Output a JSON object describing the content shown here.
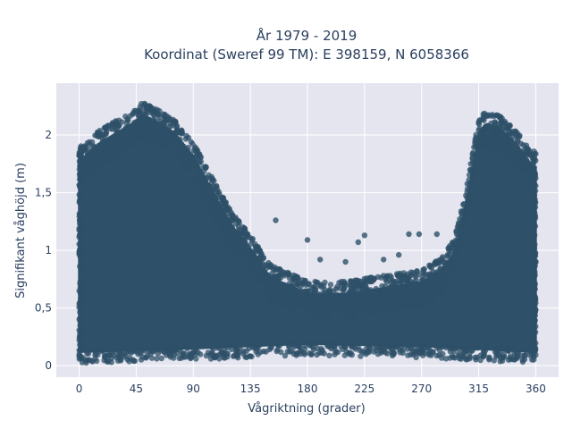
{
  "chart_data": {
    "type": "scatter",
    "title_line1": "År 1979 - 2019",
    "title_line2": "Koordinat (Sweref 99 TM): E 398159, N 6058366",
    "xlabel": "Vågriktning (grader)",
    "ylabel": "Signifikant våghöjd (m)",
    "xlim": [
      -18,
      378
    ],
    "ylim": [
      -0.1,
      2.45
    ],
    "xticks": [
      0,
      45,
      90,
      135,
      180,
      225,
      270,
      315,
      360
    ],
    "xtick_labels": [
      "0",
      "45",
      "90",
      "135",
      "180",
      "225",
      "270",
      "315",
      "360"
    ],
    "yticks": [
      0,
      0.5,
      1,
      1.5,
      2
    ],
    "ytick_labels": [
      "0",
      "0,5",
      "1",
      "1,5",
      "2"
    ],
    "grid": true,
    "marker_color": "#2e5068",
    "plot_background": "#e5e5f0",
    "upper_envelope": {
      "x": [
        0,
        15,
        30,
        45,
        50,
        60,
        75,
        90,
        105,
        120,
        135,
        150,
        180,
        210,
        240,
        270,
        285,
        295,
        300,
        305,
        310,
        315,
        320,
        330,
        345,
        355,
        360
      ],
      "y": [
        1.9,
        2.05,
        2.15,
        2.25,
        2.3,
        2.25,
        2.15,
        1.95,
        1.65,
        1.35,
        1.15,
        0.9,
        0.75,
        0.75,
        0.8,
        0.85,
        0.95,
        1.1,
        1.3,
        1.55,
        1.85,
        2.15,
        2.22,
        2.2,
        2.05,
        1.9,
        1.85
      ]
    },
    "lower_envelope": {
      "x": [
        0,
        90,
        180,
        270,
        360
      ],
      "y": [
        0.05,
        0.08,
        0.12,
        0.1,
        0.05
      ]
    },
    "outliers": [
      {
        "x": 155,
        "y": 1.26
      },
      {
        "x": 180,
        "y": 1.09
      },
      {
        "x": 220,
        "y": 1.07
      },
      {
        "x": 225,
        "y": 1.13
      },
      {
        "x": 260,
        "y": 1.14
      },
      {
        "x": 268,
        "y": 1.14
      },
      {
        "x": 282,
        "y": 1.14
      },
      {
        "x": 190,
        "y": 0.92
      },
      {
        "x": 210,
        "y": 0.9
      },
      {
        "x": 240,
        "y": 0.92
      },
      {
        "x": 252,
        "y": 0.96
      }
    ]
  }
}
